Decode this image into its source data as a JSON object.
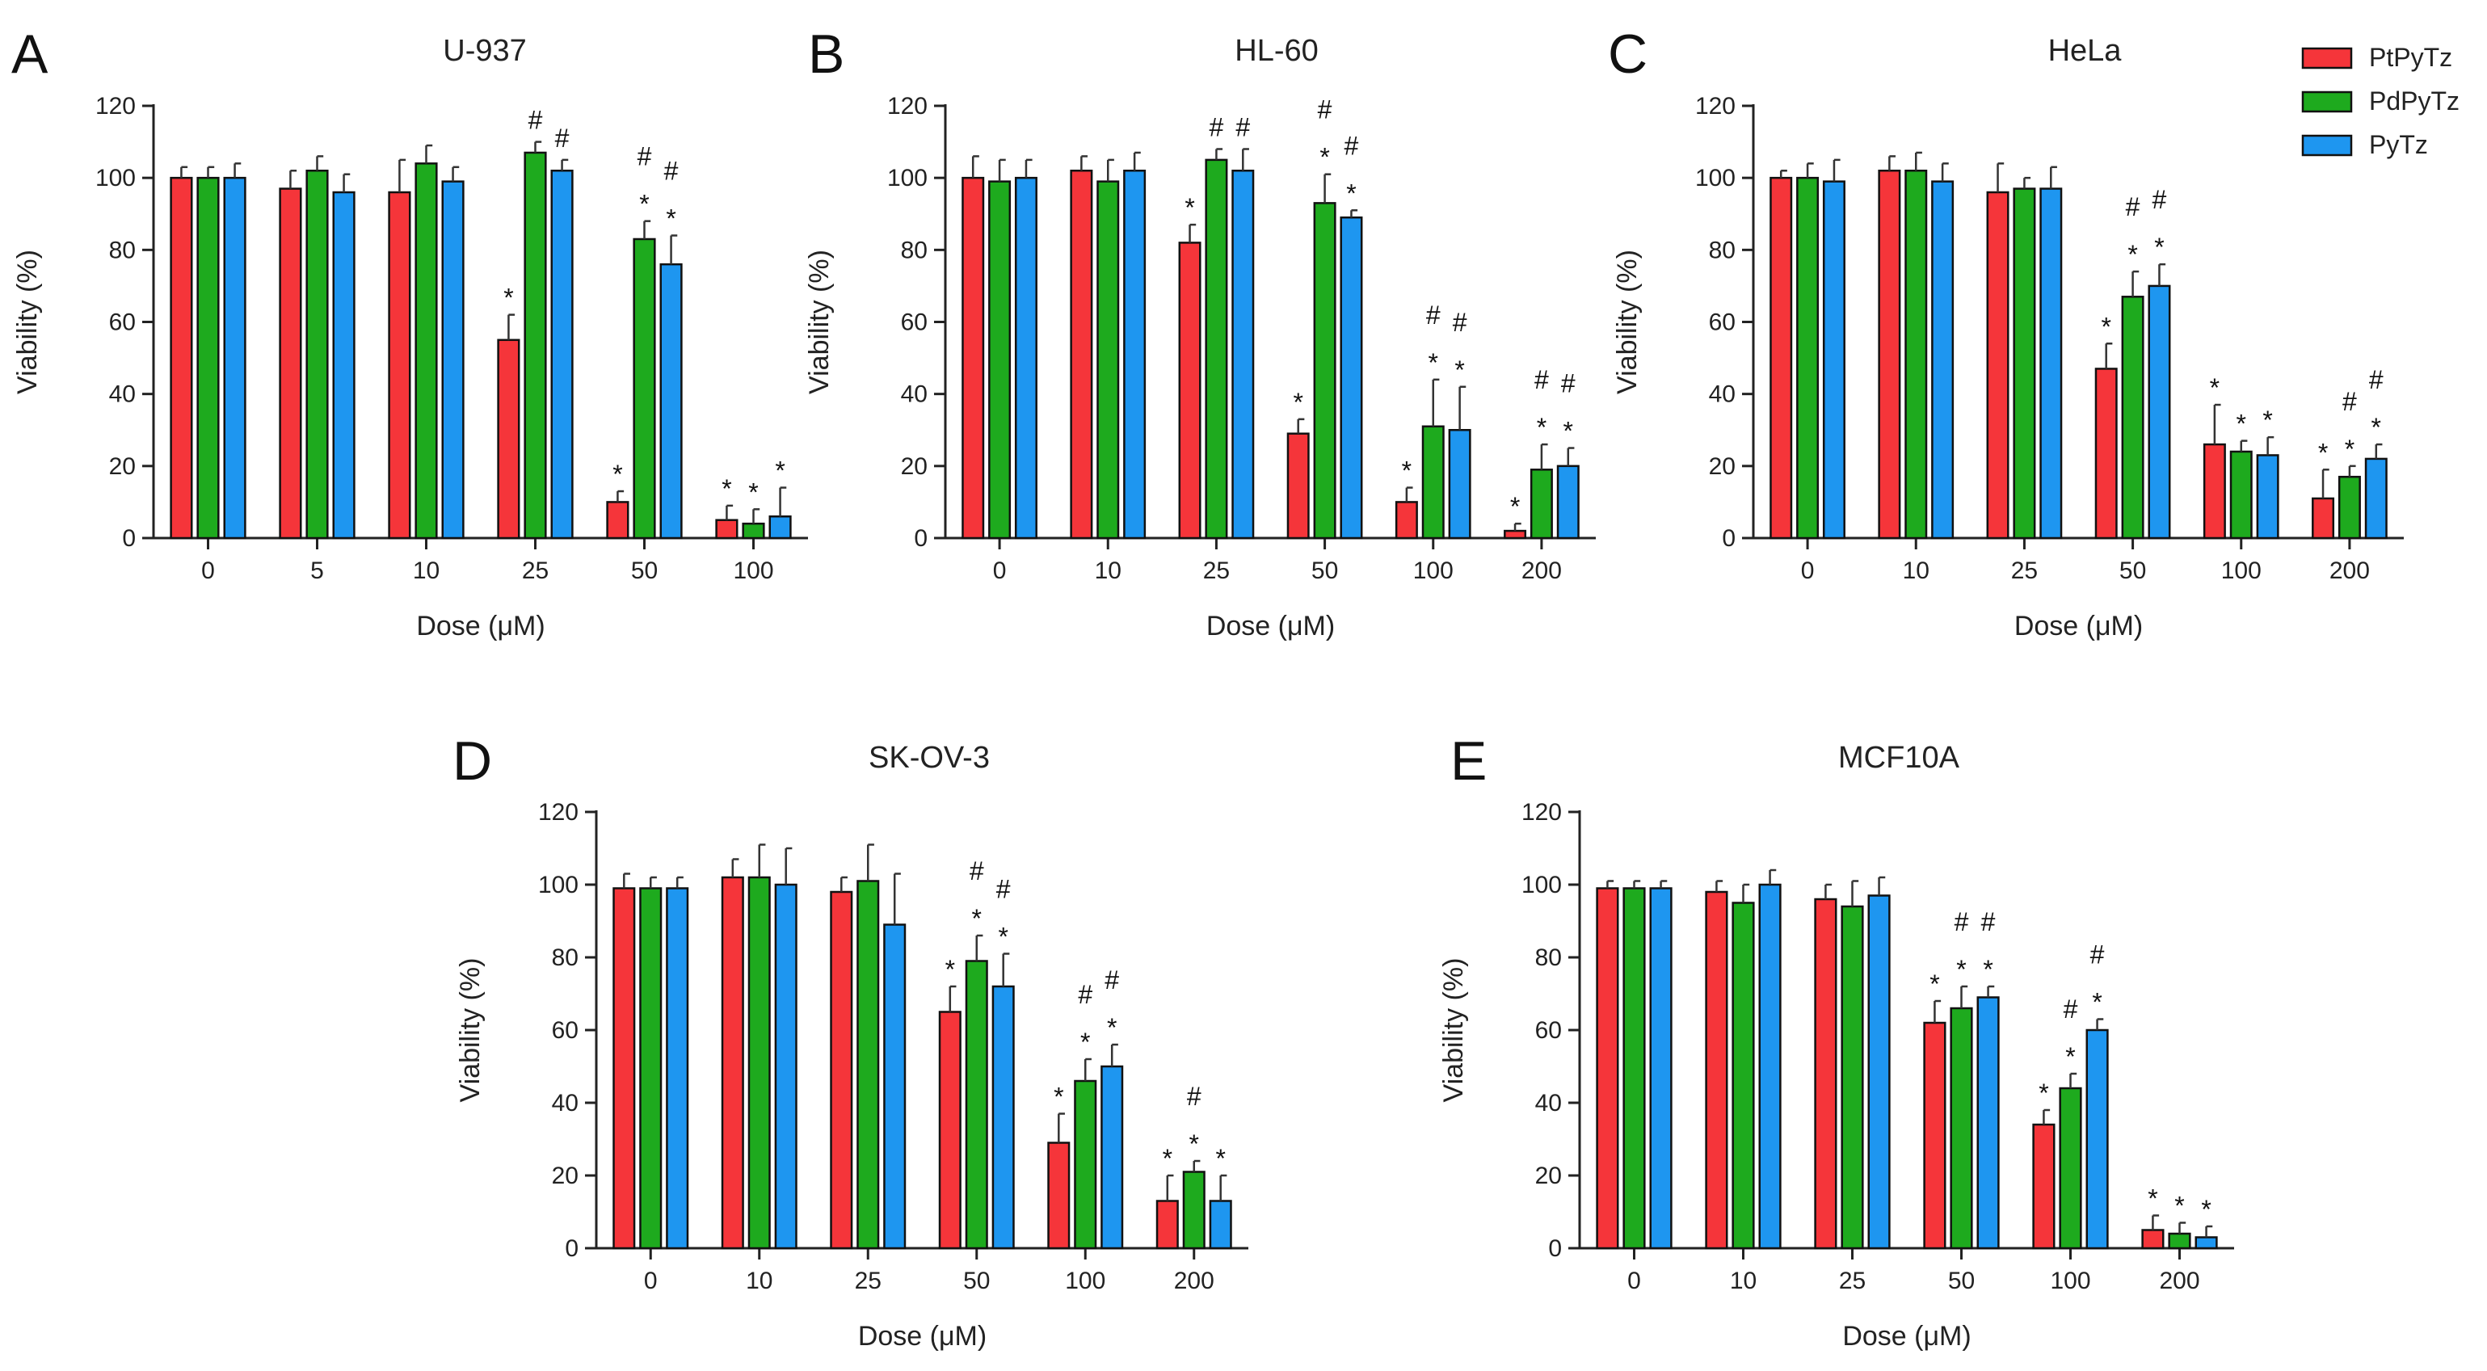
{
  "legend": [
    {
      "name": "PtPyTz",
      "color": "#f5353a"
    },
    {
      "name": "PdPyTz",
      "color": "#1eaa1e"
    },
    {
      "name": "PyTz",
      "color": "#1e96f0"
    }
  ],
  "chart_data": [
    {
      "letter": "A",
      "type": "bar",
      "title": "U-937",
      "xlabel": "Dose (μM)",
      "ylabel": "Viability (%)",
      "ylim": [
        0,
        120
      ],
      "yticks": [
        0,
        20,
        40,
        60,
        80,
        100,
        120
      ],
      "categories": [
        "0",
        "5",
        "10",
        "25",
        "50",
        "100"
      ],
      "series": [
        {
          "name": "PtPyTz",
          "values": [
            100,
            97,
            96,
            55,
            10,
            5
          ],
          "errors": [
            3,
            5,
            9,
            7,
            3,
            4
          ],
          "annotations": [
            "",
            "",
            "",
            "*",
            "*",
            "*"
          ]
        },
        {
          "name": "PdPyTz",
          "values": [
            100,
            102,
            104,
            107,
            83,
            4
          ],
          "errors": [
            3,
            4,
            5,
            3,
            5,
            4
          ],
          "annotations": [
            "",
            "",
            "",
            "#",
            "* #",
            "*"
          ]
        },
        {
          "name": "PyTz",
          "values": [
            100,
            96,
            99,
            102,
            76,
            6
          ],
          "errors": [
            4,
            5,
            4,
            3,
            8,
            8
          ],
          "annotations": [
            "",
            "",
            "",
            "#",
            "* #",
            "*"
          ]
        }
      ]
    },
    {
      "letter": "B",
      "type": "bar",
      "title": "HL-60",
      "xlabel": "Dose (μM)",
      "ylabel": "Viability (%)",
      "ylim": [
        0,
        120
      ],
      "yticks": [
        0,
        20,
        40,
        60,
        80,
        100,
        120
      ],
      "categories": [
        "0",
        "10",
        "25",
        "50",
        "100",
        "200"
      ],
      "series": [
        {
          "name": "PtPyTz",
          "values": [
            100,
            102,
            82,
            29,
            10,
            2
          ],
          "errors": [
            6,
            4,
            5,
            4,
            4,
            2
          ],
          "annotations": [
            "",
            "",
            "*",
            "*",
            "*",
            "*"
          ]
        },
        {
          "name": "PdPyTz",
          "values": [
            99,
            99,
            105,
            93,
            31,
            19
          ],
          "errors": [
            6,
            6,
            3,
            8,
            13,
            7
          ],
          "annotations": [
            "",
            "",
            "#",
            "* #",
            "* #",
            "* #"
          ]
        },
        {
          "name": "PyTz",
          "values": [
            100,
            102,
            102,
            89,
            30,
            20
          ],
          "errors": [
            5,
            5,
            6,
            2,
            12,
            5
          ],
          "annotations": [
            "",
            "",
            "#",
            "* #",
            "* #",
            "* #"
          ]
        }
      ]
    },
    {
      "letter": "C",
      "type": "bar",
      "title": "HeLa",
      "xlabel": "Dose (μM)",
      "ylabel": "Viability (%)",
      "ylim": [
        0,
        120
      ],
      "yticks": [
        0,
        20,
        40,
        60,
        80,
        100,
        120
      ],
      "categories": [
        "0",
        "10",
        "25",
        "50",
        "100",
        "200"
      ],
      "series": [
        {
          "name": "PtPyTz",
          "values": [
            100,
            102,
            96,
            47,
            26,
            11
          ],
          "errors": [
            2,
            4,
            8,
            7,
            11,
            8
          ],
          "annotations": [
            "",
            "",
            "",
            "*",
            "*",
            "*"
          ]
        },
        {
          "name": "PdPyTz",
          "values": [
            100,
            102,
            97,
            67,
            24,
            17
          ],
          "errors": [
            4,
            5,
            3,
            7,
            3,
            3
          ],
          "annotations": [
            "",
            "",
            "",
            "* #",
            "*",
            "* #"
          ]
        },
        {
          "name": "PyTz",
          "values": [
            99,
            99,
            97,
            70,
            23,
            22
          ],
          "errors": [
            6,
            5,
            6,
            6,
            5,
            4
          ],
          "annotations": [
            "",
            "",
            "",
            "* #",
            "*",
            "* #"
          ]
        }
      ]
    },
    {
      "letter": "D",
      "type": "bar",
      "title": "SK-OV-3",
      "xlabel": "Dose (μM)",
      "ylabel": "Viability (%)",
      "ylim": [
        0,
        120
      ],
      "yticks": [
        0,
        20,
        40,
        60,
        80,
        100,
        120
      ],
      "categories": [
        "0",
        "10",
        "25",
        "50",
        "100",
        "200"
      ],
      "series": [
        {
          "name": "PtPyTz",
          "values": [
            99,
            102,
            98,
            65,
            29,
            13
          ],
          "errors": [
            4,
            5,
            4,
            7,
            8,
            7
          ],
          "annotations": [
            "",
            "",
            "",
            "*",
            "*",
            "*"
          ]
        },
        {
          "name": "PdPyTz",
          "values": [
            99,
            102,
            101,
            79,
            46,
            21
          ],
          "errors": [
            3,
            9,
            10,
            7,
            6,
            3
          ],
          "annotations": [
            "",
            "",
            "",
            "* #",
            "* #",
            "* #"
          ]
        },
        {
          "name": "PyTz",
          "values": [
            99,
            100,
            89,
            72,
            50,
            13
          ],
          "errors": [
            3,
            10,
            14,
            9,
            6,
            7
          ],
          "annotations": [
            "",
            "",
            "",
            "* #",
            "* #",
            "*"
          ]
        }
      ]
    },
    {
      "letter": "E",
      "type": "bar",
      "title": "MCF10A",
      "xlabel": "Dose (μM)",
      "ylabel": "Viability (%)",
      "ylim": [
        0,
        120
      ],
      "yticks": [
        0,
        20,
        40,
        60,
        80,
        100,
        120
      ],
      "categories": [
        "0",
        "10",
        "25",
        "50",
        "100",
        "200"
      ],
      "series": [
        {
          "name": "PtPyTz",
          "values": [
            99,
            98,
            96,
            62,
            34,
            5
          ],
          "errors": [
            2,
            3,
            4,
            6,
            4,
            4
          ],
          "annotations": [
            "",
            "",
            "",
            "*",
            "*",
            "*"
          ]
        },
        {
          "name": "PdPyTz",
          "values": [
            99,
            95,
            94,
            66,
            44,
            4
          ],
          "errors": [
            2,
            5,
            7,
            6,
            4,
            3
          ],
          "annotations": [
            "",
            "",
            "",
            "* #",
            "* #",
            "*"
          ]
        },
        {
          "name": "PyTz",
          "values": [
            99,
            100,
            97,
            69,
            60,
            3
          ],
          "errors": [
            2,
            4,
            5,
            3,
            3,
            3
          ],
          "annotations": [
            "",
            "",
            "",
            "* #",
            "* #",
            "*"
          ]
        }
      ]
    }
  ]
}
